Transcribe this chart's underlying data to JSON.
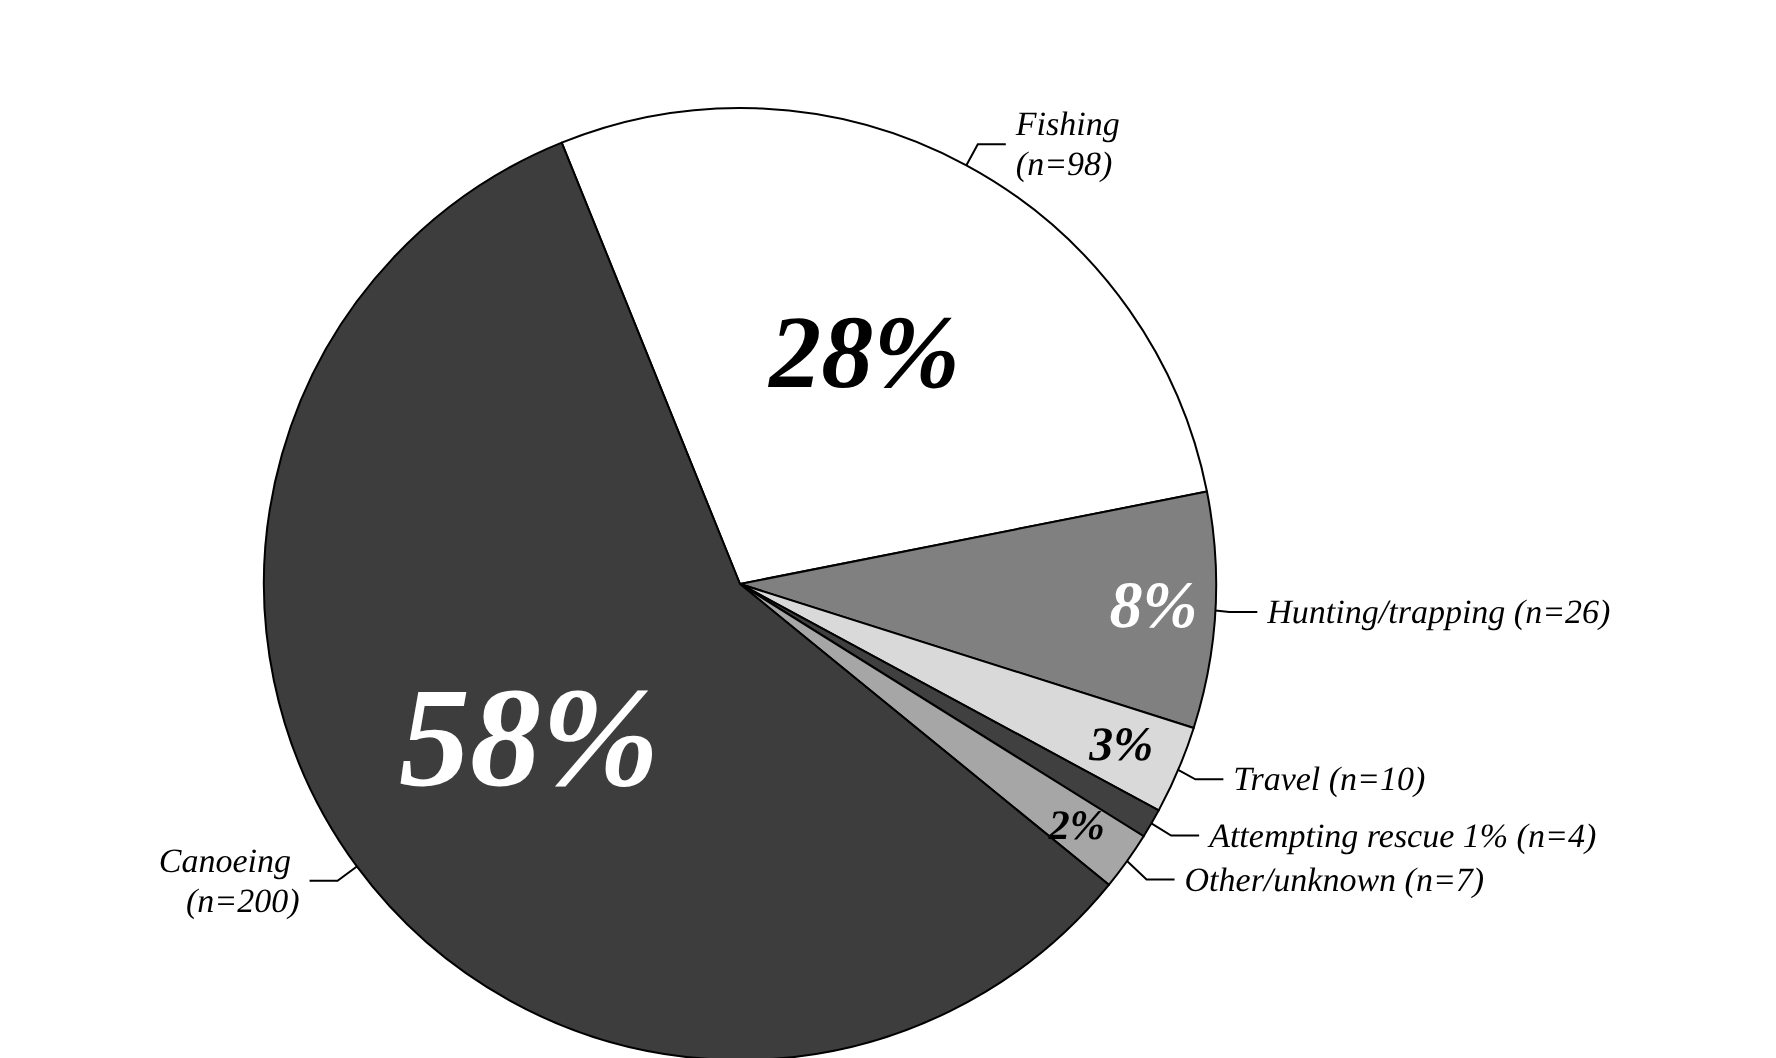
{
  "chart_data": {
    "type": "pie",
    "categories": [
      "Fishing (n=98)",
      "Hunting/trapping (n=26)",
      "Travel (n=10)",
      "Attempting rescue 1% (n=4)",
      "Other/unknown (n=7)",
      "Canoeing (n=200)"
    ],
    "values": [
      28,
      8,
      3,
      1,
      2,
      58
    ],
    "colors": [
      "#ffffff",
      "#808080",
      "#d9d9d9",
      "#404040",
      "#a6a6a6",
      "#3d3d3d"
    ],
    "value_labels": [
      "28%",
      "8%",
      "3%",
      null,
      "2%",
      "58%"
    ]
  }
}
